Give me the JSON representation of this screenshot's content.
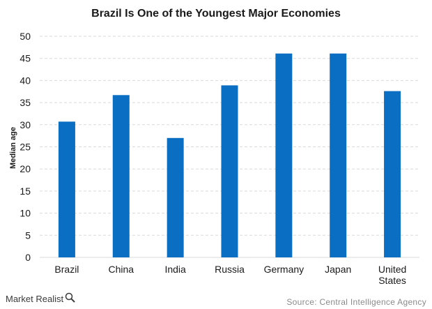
{
  "chart_data": {
    "type": "bar",
    "title": "Brazil Is One of the Youngest Major Economies",
    "ylabel": "Median age",
    "xlabel": "",
    "categories": [
      "Brazil",
      "China",
      "India",
      "Russia",
      "Germany",
      "Japan",
      "United States"
    ],
    "category_lines": [
      [
        "Brazil"
      ],
      [
        "China"
      ],
      [
        "India"
      ],
      [
        "Russia"
      ],
      [
        "Germany"
      ],
      [
        "Japan"
      ],
      [
        "United",
        "States"
      ]
    ],
    "values": [
      30.7,
      36.7,
      27.0,
      38.9,
      46.1,
      46.1,
      37.6
    ],
    "ylim": [
      0,
      50
    ],
    "yticks": [
      0,
      5,
      10,
      15,
      20,
      25,
      30,
      35,
      40,
      45,
      50
    ],
    "grid": true,
    "bar_color": "#0a6fc2",
    "grid_color": "#d9d9d9"
  },
  "footer": {
    "brand": "Market Realist",
    "source": "Source: Central Intelligence Agency"
  }
}
